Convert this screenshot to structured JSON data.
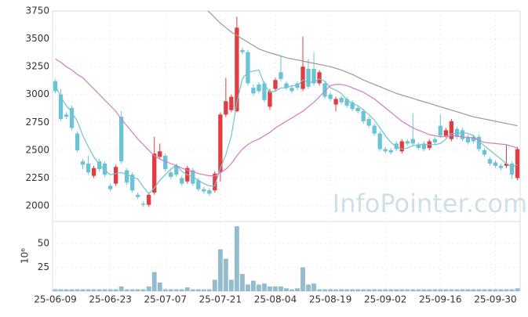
{
  "chart_data": {
    "type": "candlestick",
    "categories": [
      "25-06-09",
      null,
      null,
      null,
      null,
      null,
      null,
      null,
      null,
      null,
      "25-06-23",
      null,
      null,
      null,
      null,
      null,
      null,
      null,
      null,
      null,
      "25-07-07",
      null,
      null,
      null,
      null,
      null,
      null,
      null,
      null,
      null,
      "25-07-21",
      null,
      null,
      null,
      null,
      null,
      null,
      null,
      null,
      null,
      "25-08-04",
      null,
      null,
      null,
      null,
      null,
      null,
      null,
      null,
      null,
      "25-08-19",
      null,
      null,
      null,
      null,
      null,
      null,
      null,
      null,
      null,
      "25-09-02",
      null,
      null,
      null,
      null,
      null,
      null,
      null,
      null,
      null,
      "25-09-16",
      null,
      null,
      null,
      null,
      null,
      null,
      null,
      null,
      null,
      "25-09-30",
      null,
      null,
      null,
      null
    ],
    "open": [
      3120,
      3000,
      2820,
      2880,
      2650,
      2400,
      2380,
      2270,
      2400,
      2380,
      2180,
      2200,
      2800,
      2320,
      2280,
      2100,
      2020,
      2010,
      2120,
      2440,
      2450,
      2300,
      2360,
      2250,
      2220,
      2320,
      2230,
      2150,
      2140,
      2140,
      2300,
      2820,
      2860,
      2850,
      3400,
      3380,
      3060,
      3090,
      3100,
      2890,
      3050,
      3200,
      3100,
      3060,
      3100,
      3050,
      3230,
      3230,
      3100,
      3100,
      3000,
      2910,
      2970,
      2960,
      2930,
      2880,
      2850,
      2780,
      2720,
      2650,
      2510,
      2500,
      2560,
      2490,
      2580,
      2600,
      2550,
      2560,
      2520,
      2600,
      2720,
      2630,
      2600,
      2690,
      2680,
      2620,
      2620,
      2620,
      2500,
      2420,
      2390,
      2360,
      2360,
      2380,
      2250
    ],
    "high": [
      3140,
      3050,
      2840,
      2900,
      2670,
      2420,
      2450,
      2360,
      2420,
      2400,
      2200,
      2370,
      2850,
      2340,
      2300,
      2120,
      2040,
      2120,
      2620,
      2560,
      2470,
      2320,
      2380,
      2270,
      2360,
      2340,
      2250,
      2170,
      2160,
      2310,
      2840,
      3150,
      3000,
      3700,
      3420,
      3400,
      3090,
      3110,
      3120,
      3050,
      3150,
      3350,
      3120,
      3080,
      3120,
      3520,
      3320,
      3380,
      3220,
      3120,
      3020,
      2980,
      2990,
      2980,
      2950,
      2900,
      2870,
      2800,
      2740,
      2670,
      2530,
      2520,
      2580,
      2600,
      2600,
      2830,
      2570,
      2580,
      2600,
      2620,
      2820,
      2700,
      2780,
      2710,
      2700,
      2640,
      2640,
      2640,
      2520,
      2440,
      2410,
      2380,
      2550,
      2400,
      2530
    ],
    "low": [
      3010,
      2760,
      2780,
      2680,
      2480,
      2330,
      2280,
      2250,
      2310,
      2260,
      2130,
      2180,
      2380,
      2190,
      2120,
      2060,
      1990,
      1990,
      2100,
      2420,
      2310,
      2240,
      2260,
      2180,
      2200,
      2180,
      2130,
      2110,
      2090,
      2120,
      2220,
      2800,
      2840,
      2840,
      3360,
      3080,
      2990,
      3010,
      2930,
      2860,
      3030,
      3120,
      3040,
      3010,
      3040,
      3030,
      3050,
      3080,
      3080,
      2960,
      2940,
      2850,
      2910,
      2880,
      2850,
      2830,
      2740,
      2700,
      2630,
      2490,
      2470,
      2460,
      2490,
      2470,
      2540,
      2540,
      2500,
      2490,
      2500,
      2550,
      2610,
      2610,
      2580,
      2600,
      2580,
      2550,
      2560,
      2490,
      2440,
      2360,
      2340,
      2320,
      2340,
      2240,
      2230
    ],
    "close": [
      3030,
      2780,
      2800,
      2700,
      2500,
      2370,
      2300,
      2340,
      2330,
      2280,
      2150,
      2350,
      2400,
      2210,
      2140,
      2080,
      2010,
      2100,
      2470,
      2490,
      2330,
      2260,
      2280,
      2200,
      2340,
      2200,
      2150,
      2130,
      2110,
      2290,
      2820,
      2940,
      2980,
      3600,
      3380,
      3100,
      3010,
      3030,
      2950,
      3030,
      3130,
      3140,
      3060,
      3030,
      3060,
      3250,
      3070,
      3100,
      3200,
      2980,
      2960,
      2960,
      2930,
      2900,
      2870,
      2850,
      2760,
      2720,
      2650,
      2510,
      2490,
      2480,
      2510,
      2580,
      2560,
      2560,
      2520,
      2510,
      2580,
      2570,
      2630,
      2680,
      2760,
      2620,
      2600,
      2570,
      2580,
      2510,
      2460,
      2380,
      2360,
      2340,
      2380,
      2280,
      2510
    ],
    "up_color": "#e23b40",
    "down_color": "#6cc3d6",
    "ylim": [
      1860,
      3750
    ],
    "yticks": [
      2000,
      2250,
      2500,
      2750,
      3000,
      3250,
      3500,
      3750
    ],
    "grid": true,
    "ma": [
      {
        "color": "#6ec6c6",
        "values": [
          3080,
          2980,
          2900,
          2840,
          2760,
          2630,
          2530,
          2440,
          2370,
          2320,
          2280,
          2290,
          2300,
          2280,
          2260,
          2240,
          2170,
          2110,
          2160,
          2230,
          2280,
          2330,
          2370,
          2310,
          2280,
          2260,
          2230,
          2200,
          2180,
          2180,
          2340,
          2460,
          2630,
          2930,
          3140,
          3200,
          3210,
          3220,
          3090,
          3020,
          3030,
          3060,
          3060,
          3080,
          3080,
          3130,
          3110,
          3110,
          3140,
          3120,
          3060,
          3040,
          3010,
          2950,
          2920,
          2900,
          2860,
          2820,
          2770,
          2700,
          2630,
          2570,
          2530,
          2510,
          2520,
          2540,
          2550,
          2550,
          2550,
          2550,
          2560,
          2600,
          2650,
          2650,
          2660,
          2650,
          2630,
          2580,
          2540,
          2500,
          2460,
          2420,
          2380,
          2350,
          2370
        ]
      },
      {
        "color": "#d07dc2",
        "values": [
          3320,
          3290,
          3250,
          3220,
          3180,
          3150,
          3100,
          3050,
          3000,
          2950,
          2900,
          2850,
          2780,
          2720,
          2660,
          2600,
          2550,
          2500,
          2450,
          2420,
          2400,
          2380,
          2360,
          2340,
          2320,
          2310,
          2290,
          2280,
          2270,
          2270,
          2300,
          2330,
          2380,
          2450,
          2510,
          2550,
          2580,
          2600,
          2630,
          2660,
          2700,
          2730,
          2760,
          2790,
          2820,
          2850,
          2890,
          2930,
          2980,
          3030,
          3080,
          3090,
          3090,
          3080,
          3060,
          3040,
          3020,
          2990,
          2960,
          2920,
          2880,
          2840,
          2800,
          2760,
          2730,
          2700,
          2680,
          2660,
          2640,
          2630,
          2620,
          2625,
          2630,
          2625,
          2620,
          2615,
          2610,
          2590,
          2570,
          2565,
          2560,
          2555,
          2550,
          2535,
          2520
        ]
      },
      {
        "color": "#999999",
        "values": [
          null,
          null,
          null,
          null,
          null,
          null,
          null,
          null,
          null,
          null,
          null,
          null,
          null,
          null,
          null,
          null,
          null,
          null,
          null,
          null,
          null,
          null,
          null,
          null,
          null,
          null,
          null,
          3780,
          3740,
          3690,
          3640,
          3600,
          3560,
          3530,
          3500,
          3470,
          3440,
          3410,
          3390,
          3375,
          3360,
          3345,
          3330,
          3320,
          3310,
          3300,
          3290,
          3280,
          3270,
          3260,
          3250,
          3235,
          3220,
          3200,
          3180,
          3155,
          3130,
          3110,
          3090,
          3070,
          3050,
          3030,
          3010,
          2995,
          2980,
          2965,
          2950,
          2935,
          2920,
          2905,
          2890,
          2875,
          2860,
          2845,
          2830,
          2815,
          2800,
          2790,
          2780,
          2770,
          2760,
          2750,
          2740,
          2730,
          2720
        ]
      }
    ],
    "volume": {
      "color": "#93bdcf",
      "unit_label": "10⁶",
      "ylim": [
        0,
        73
      ],
      "yticks": [
        25,
        50
      ],
      "values": [
        2,
        2,
        2,
        2,
        2,
        2,
        2,
        2,
        2,
        2,
        2,
        2,
        5,
        2,
        2,
        2,
        2,
        5,
        20,
        9,
        2,
        2,
        2,
        2,
        4,
        2,
        2,
        2,
        2,
        12,
        44,
        34,
        12,
        68,
        18,
        7,
        11,
        7,
        8,
        5,
        5,
        5,
        3,
        2,
        3,
        25,
        7,
        8,
        2,
        2,
        2,
        2,
        2,
        2,
        2,
        2,
        2,
        2,
        2,
        2,
        2,
        2,
        2,
        2,
        2,
        2,
        2,
        2,
        2,
        2,
        2,
        2,
        2,
        2,
        2,
        2,
        2,
        2,
        2,
        2,
        2,
        2,
        2,
        2,
        3
      ]
    },
    "watermark": "InfoPointer.com"
  }
}
